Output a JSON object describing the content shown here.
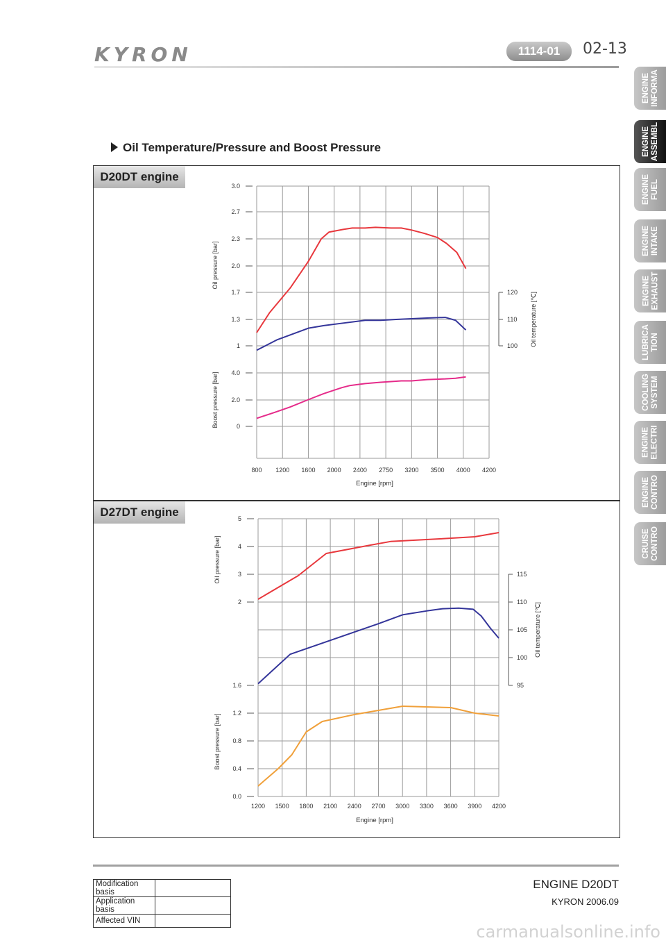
{
  "header": {
    "brand": "KYRON",
    "code": "1114-01",
    "page": "02-13"
  },
  "tabs": [
    {
      "label": "ENGINE\nINFORMA",
      "active": false
    },
    {
      "label": "ENGINE\nASSEMBL",
      "active": true
    },
    {
      "label": "ENGINE\nFUEL",
      "active": false
    },
    {
      "label": "ENGINE\nINTAKE",
      "active": false
    },
    {
      "label": "ENGINE\nEXHAUST",
      "active": false
    },
    {
      "label": "LUBRICA\nTION",
      "active": false
    },
    {
      "label": "COOLING\nSYSTEM",
      "active": false
    },
    {
      "label": "ENGINE\nELECTRI",
      "active": false
    },
    {
      "label": "ENGINE\nCONTRO",
      "active": false
    },
    {
      "label": "CRUISE\nCONTRO",
      "active": false
    }
  ],
  "section_title": "Oil Temperature/Pressure and Boost Pressure",
  "chart_data": [
    {
      "type": "line",
      "engine": "D20DT engine",
      "xlabel": "Engine [rpm]",
      "x_ticks": [
        "800",
        "1200",
        "1600",
        "2000",
        "2400",
        "2750",
        "3200",
        "3500",
        "4000",
        "4200"
      ],
      "oil_pressure": {
        "label": "Oil pressure [bar]",
        "ticks": [
          "1",
          "1.3",
          "1.7",
          "2.0",
          "2.3",
          "2.7",
          "3.0"
        ]
      },
      "boost_pressure": {
        "label": "Boost pressure [bar]",
        "ticks": [
          "0",
          "2.0",
          "4.0"
        ]
      },
      "oil_temperature": {
        "label": "Oil temperature [℃]",
        "ticks": [
          "100",
          "110",
          "120"
        ]
      },
      "series": [
        {
          "color": "#e8383d",
          "values": [
            [
              1,
              1.15
            ],
            [
              1.5,
              1.4
            ],
            [
              2.3,
              1.75
            ],
            [
              3.0,
              2.05
            ],
            [
              3.5,
              2.3
            ],
            [
              3.8,
              2.4
            ],
            [
              4.35,
              2.44
            ],
            [
              4.7,
              2.46
            ],
            [
              5.2,
              2.46
            ],
            [
              5.6,
              2.47
            ],
            [
              6.2,
              2.46
            ],
            [
              6.6,
              2.46
            ],
            [
              7.0,
              2.43
            ],
            [
              7.5,
              2.38
            ],
            [
              8.0,
              2.32
            ],
            [
              8.35,
              2.25
            ],
            [
              8.75,
              2.15
            ],
            [
              9.1,
              1.97
            ]
          ]
        },
        {
          "color": "#34359a",
          "values": [
            [
              1,
              0.95
            ],
            [
              1.8,
              1.07
            ],
            [
              3.0,
              1.2
            ],
            [
              3.6,
              1.23
            ],
            [
              4.4,
              1.26
            ],
            [
              5.2,
              1.29
            ],
            [
              5.8,
              1.29
            ],
            [
              6.4,
              1.3
            ],
            [
              7.0,
              1.31
            ],
            [
              7.6,
              1.32
            ],
            [
              8.3,
              1.33
            ],
            [
              8.7,
              1.29
            ],
            [
              9.1,
              1.18
            ]
          ]
        },
        {
          "color": "#e52b8a",
          "values": [
            [
              1,
              0.6
            ],
            [
              1.7,
              1.05
            ],
            [
              2.3,
              1.45
            ],
            [
              3.0,
              2.0
            ],
            [
              3.6,
              2.45
            ],
            [
              4.3,
              2.9
            ],
            [
              4.6,
              3.05
            ],
            [
              5.2,
              3.2
            ],
            [
              5.8,
              3.3
            ],
            [
              6.2,
              3.35
            ],
            [
              6.6,
              3.4
            ],
            [
              7.0,
              3.4
            ],
            [
              7.6,
              3.5
            ],
            [
              8.3,
              3.55
            ],
            [
              8.7,
              3.6
            ],
            [
              9.1,
              3.7
            ]
          ]
        }
      ]
    },
    {
      "type": "line",
      "engine": "D27DT engine",
      "xlabel": "Engine [rpm]",
      "x_ticks": [
        "1200",
        "1500",
        "1800",
        "2100",
        "2400",
        "2700",
        "3000",
        "3300",
        "3600",
        "3900",
        "4200"
      ],
      "oil_pressure": {
        "label": "Oil pressure [bar]",
        "ticks": [
          "2",
          "3",
          "4",
          "5"
        ]
      },
      "boost_pressure": {
        "label": "Boost pressure [bar]",
        "ticks": [
          "0.0",
          "0.4",
          "0.8",
          "1.2",
          "1.6"
        ]
      },
      "oil_temperature": {
        "label": "Oil temperature [℃]",
        "ticks": [
          "95",
          "100",
          "105",
          "110",
          "115"
        ]
      },
      "series": [
        {
          "color": "#e8383d",
          "values": [
            [
              1200,
              2.1
            ],
            [
              1700,
              2.95
            ],
            [
              2050,
              3.75
            ],
            [
              2600,
              4.05
            ],
            [
              2850,
              4.18
            ],
            [
              3500,
              4.28
            ],
            [
              3900,
              4.35
            ],
            [
              4200,
              4.5
            ]
          ]
        },
        {
          "color": "#34359a",
          "values": [
            [
              1200,
              95.3
            ],
            [
              1600,
              100.6
            ],
            [
              2000,
              102.6
            ],
            [
              2400,
              104.6
            ],
            [
              2700,
              106.1
            ],
            [
              3000,
              107.7
            ],
            [
              3300,
              108.4
            ],
            [
              3500,
              108.8
            ],
            [
              3700,
              108.9
            ],
            [
              3880,
              108.7
            ],
            [
              3980,
              107.5
            ],
            [
              4100,
              105.2
            ],
            [
              4200,
              103.5
            ]
          ]
        },
        {
          "color": "#f0a03a",
          "values": [
            [
              1200,
              0.15
            ],
            [
              1450,
              0.4
            ],
            [
              1620,
              0.6
            ],
            [
              1800,
              0.93
            ],
            [
              2000,
              1.08
            ],
            [
              2400,
              1.18
            ],
            [
              3000,
              1.3
            ],
            [
              3600,
              1.28
            ],
            [
              3900,
              1.2
            ],
            [
              4200,
              1.16
            ]
          ]
        }
      ]
    }
  ],
  "modification_table": [
    {
      "label": "Modification basis",
      "value": ""
    },
    {
      "label": "Application basis",
      "value": ""
    },
    {
      "label": "Affected VIN",
      "value": ""
    }
  ],
  "footer": {
    "title": "ENGINE D20DT",
    "subtitle": "KYRON 2006.09"
  },
  "watermark": "carmanualsonline.info"
}
